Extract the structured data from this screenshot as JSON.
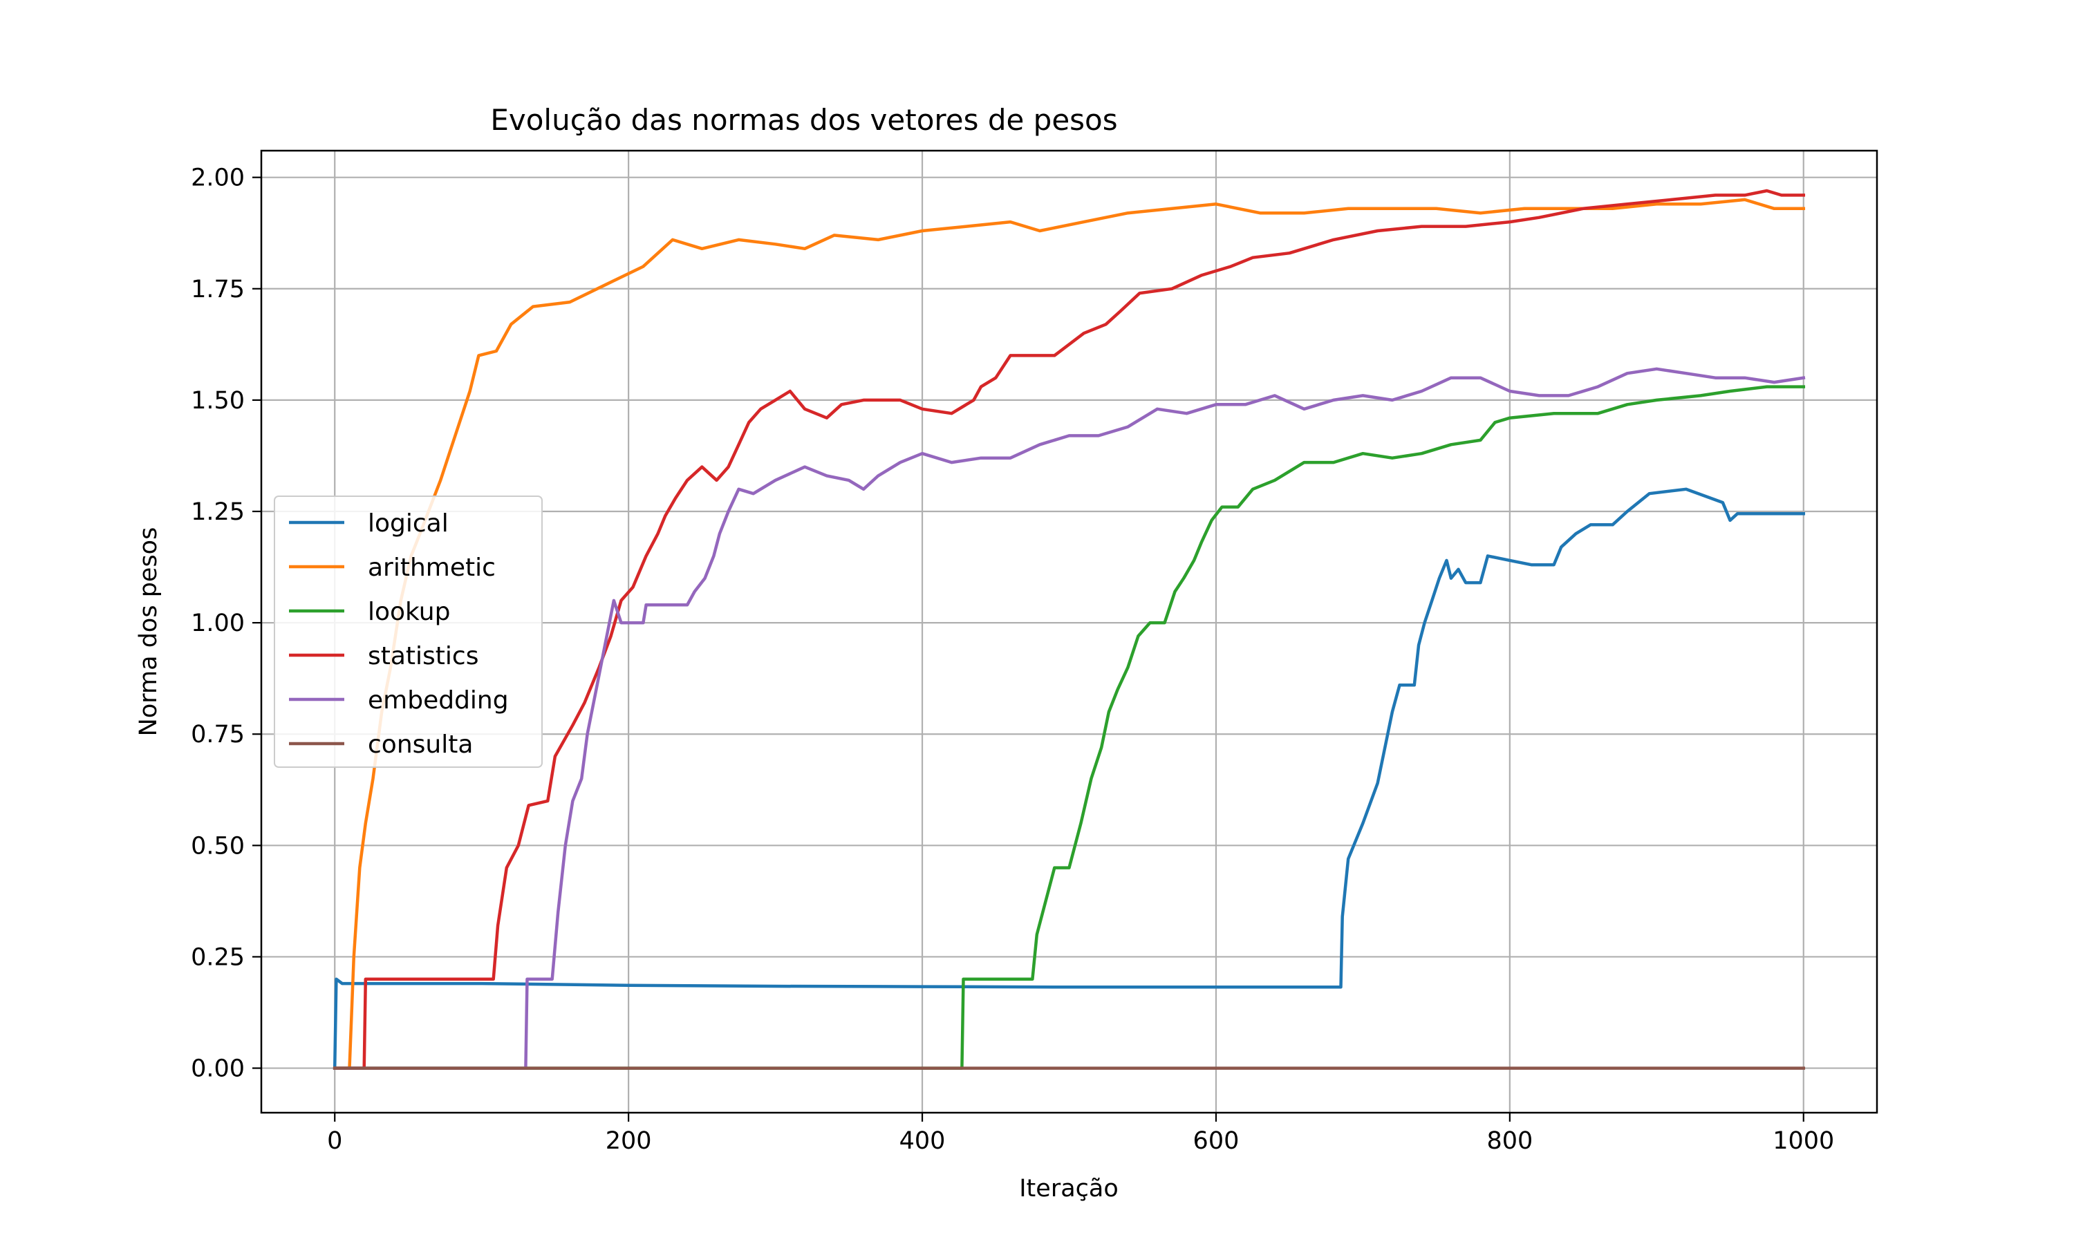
{
  "chart_data": {
    "type": "line",
    "title": "Evolução das normas dos vetores de pesos",
    "xlabel": "Iteração",
    "ylabel": "Norma dos pesos",
    "xlim": [
      -50,
      1050
    ],
    "ylim": [
      -0.1,
      2.06
    ],
    "xticks": [
      0,
      200,
      400,
      600,
      800,
      1000
    ],
    "xtick_labels": [
      "0",
      "200",
      "400",
      "600",
      "800",
      "1000"
    ],
    "yticks": [
      0,
      0.25,
      0.5,
      0.75,
      1.0,
      1.25,
      1.5,
      1.75,
      2.0
    ],
    "ytick_labels": [
      "0.00",
      "0.25",
      "0.50",
      "0.75",
      "1.00",
      "1.25",
      "1.50",
      "1.75",
      "2.00"
    ],
    "grid": true,
    "legend_position": "center-left",
    "series": [
      {
        "name": "logical",
        "color": "#1f77b4",
        "points": [
          [
            0,
            0
          ],
          [
            1,
            0.2
          ],
          [
            5,
            0.19
          ],
          [
            50,
            0.19
          ],
          [
            100,
            0.19
          ],
          [
            200,
            0.186
          ],
          [
            300,
            0.184
          ],
          [
            400,
            0.183
          ],
          [
            500,
            0.182
          ],
          [
            600,
            0.182
          ],
          [
            685,
            0.182
          ],
          [
            686,
            0.34
          ],
          [
            690,
            0.47
          ],
          [
            700,
            0.55
          ],
          [
            710,
            0.64
          ],
          [
            715,
            0.72
          ],
          [
            720,
            0.8
          ],
          [
            725,
            0.86
          ],
          [
            735,
            0.86
          ],
          [
            738,
            0.95
          ],
          [
            742,
            1.0
          ],
          [
            747,
            1.05
          ],
          [
            752,
            1.1
          ],
          [
            757,
            1.14
          ],
          [
            760,
            1.1
          ],
          [
            765,
            1.12
          ],
          [
            770,
            1.09
          ],
          [
            780,
            1.09
          ],
          [
            785,
            1.15
          ],
          [
            800,
            1.14
          ],
          [
            815,
            1.13
          ],
          [
            830,
            1.13
          ],
          [
            835,
            1.17
          ],
          [
            845,
            1.2
          ],
          [
            855,
            1.22
          ],
          [
            870,
            1.22
          ],
          [
            880,
            1.25
          ],
          [
            895,
            1.29
          ],
          [
            920,
            1.3
          ],
          [
            945,
            1.27
          ],
          [
            950,
            1.23
          ],
          [
            955,
            1.245
          ],
          [
            970,
            1.245
          ],
          [
            1000,
            1.245
          ]
        ]
      },
      {
        "name": "arithmetic",
        "color": "#ff7f0e",
        "points": [
          [
            0,
            0
          ],
          [
            10,
            0
          ],
          [
            13,
            0.25
          ],
          [
            17,
            0.45
          ],
          [
            21,
            0.55
          ],
          [
            26,
            0.65
          ],
          [
            32,
            0.8
          ],
          [
            38,
            0.9
          ],
          [
            45,
            1.05
          ],
          [
            52,
            1.15
          ],
          [
            58,
            1.2
          ],
          [
            65,
            1.26
          ],
          [
            72,
            1.32
          ],
          [
            78,
            1.38
          ],
          [
            85,
            1.45
          ],
          [
            92,
            1.52
          ],
          [
            98,
            1.6
          ],
          [
            110,
            1.61
          ],
          [
            120,
            1.67
          ],
          [
            135,
            1.71
          ],
          [
            160,
            1.72
          ],
          [
            185,
            1.76
          ],
          [
            210,
            1.8
          ],
          [
            230,
            1.86
          ],
          [
            250,
            1.84
          ],
          [
            275,
            1.86
          ],
          [
            300,
            1.85
          ],
          [
            320,
            1.84
          ],
          [
            340,
            1.87
          ],
          [
            370,
            1.86
          ],
          [
            400,
            1.88
          ],
          [
            430,
            1.89
          ],
          [
            460,
            1.9
          ],
          [
            480,
            1.88
          ],
          [
            510,
            1.9
          ],
          [
            540,
            1.92
          ],
          [
            570,
            1.93
          ],
          [
            600,
            1.94
          ],
          [
            630,
            1.92
          ],
          [
            660,
            1.92
          ],
          [
            690,
            1.93
          ],
          [
            720,
            1.93
          ],
          [
            750,
            1.93
          ],
          [
            780,
            1.92
          ],
          [
            810,
            1.93
          ],
          [
            840,
            1.93
          ],
          [
            870,
            1.93
          ],
          [
            900,
            1.94
          ],
          [
            930,
            1.94
          ],
          [
            960,
            1.95
          ],
          [
            980,
            1.93
          ],
          [
            1000,
            1.93
          ]
        ]
      },
      {
        "name": "lookup",
        "color": "#2ca02c",
        "points": [
          [
            0,
            0
          ],
          [
            427,
            0
          ],
          [
            428,
            0.2
          ],
          [
            475,
            0.2
          ],
          [
            478,
            0.3
          ],
          [
            490,
            0.45
          ],
          [
            500,
            0.45
          ],
          [
            508,
            0.55
          ],
          [
            515,
            0.65
          ],
          [
            522,
            0.72
          ],
          [
            527,
            0.8
          ],
          [
            533,
            0.85
          ],
          [
            540,
            0.9
          ],
          [
            547,
            0.97
          ],
          [
            555,
            1.0
          ],
          [
            565,
            1.0
          ],
          [
            572,
            1.07
          ],
          [
            578,
            1.1
          ],
          [
            585,
            1.14
          ],
          [
            590,
            1.18
          ],
          [
            597,
            1.23
          ],
          [
            604,
            1.26
          ],
          [
            615,
            1.26
          ],
          [
            625,
            1.3
          ],
          [
            640,
            1.32
          ],
          [
            660,
            1.36
          ],
          [
            680,
            1.36
          ],
          [
            700,
            1.38
          ],
          [
            720,
            1.37
          ],
          [
            740,
            1.38
          ],
          [
            760,
            1.4
          ],
          [
            780,
            1.41
          ],
          [
            790,
            1.45
          ],
          [
            800,
            1.46
          ],
          [
            830,
            1.47
          ],
          [
            860,
            1.47
          ],
          [
            880,
            1.49
          ],
          [
            900,
            1.5
          ],
          [
            930,
            1.51
          ],
          [
            950,
            1.52
          ],
          [
            975,
            1.53
          ],
          [
            1000,
            1.53
          ]
        ]
      },
      {
        "name": "statistics",
        "color": "#d62728",
        "points": [
          [
            0,
            0
          ],
          [
            20,
            0
          ],
          [
            21,
            0.2
          ],
          [
            60,
            0.2
          ],
          [
            108,
            0.2
          ],
          [
            111,
            0.32
          ],
          [
            117,
            0.45
          ],
          [
            125,
            0.5
          ],
          [
            132,
            0.59
          ],
          [
            145,
            0.6
          ],
          [
            150,
            0.7
          ],
          [
            162,
            0.77
          ],
          [
            170,
            0.82
          ],
          [
            180,
            0.9
          ],
          [
            188,
            0.97
          ],
          [
            195,
            1.05
          ],
          [
            203,
            1.08
          ],
          [
            212,
            1.15
          ],
          [
            220,
            1.2
          ],
          [
            225,
            1.24
          ],
          [
            232,
            1.28
          ],
          [
            240,
            1.32
          ],
          [
            250,
            1.35
          ],
          [
            260,
            1.32
          ],
          [
            268,
            1.35
          ],
          [
            275,
            1.4
          ],
          [
            282,
            1.45
          ],
          [
            290,
            1.48
          ],
          [
            300,
            1.5
          ],
          [
            310,
            1.52
          ],
          [
            320,
            1.48
          ],
          [
            335,
            1.46
          ],
          [
            345,
            1.49
          ],
          [
            360,
            1.5
          ],
          [
            385,
            1.5
          ],
          [
            400,
            1.48
          ],
          [
            420,
            1.47
          ],
          [
            435,
            1.5
          ],
          [
            440,
            1.53
          ],
          [
            450,
            1.55
          ],
          [
            460,
            1.6
          ],
          [
            490,
            1.6
          ],
          [
            510,
            1.65
          ],
          [
            525,
            1.67
          ],
          [
            535,
            1.7
          ],
          [
            548,
            1.74
          ],
          [
            570,
            1.75
          ],
          [
            590,
            1.78
          ],
          [
            610,
            1.8
          ],
          [
            625,
            1.82
          ],
          [
            650,
            1.83
          ],
          [
            680,
            1.86
          ],
          [
            710,
            1.88
          ],
          [
            740,
            1.89
          ],
          [
            770,
            1.89
          ],
          [
            800,
            1.9
          ],
          [
            820,
            1.91
          ],
          [
            850,
            1.93
          ],
          [
            880,
            1.94
          ],
          [
            910,
            1.95
          ],
          [
            940,
            1.96
          ],
          [
            960,
            1.96
          ],
          [
            975,
            1.97
          ],
          [
            985,
            1.96
          ],
          [
            1000,
            1.96
          ]
        ]
      },
      {
        "name": "embedding",
        "color": "#9467bd",
        "points": [
          [
            0,
            0
          ],
          [
            130,
            0
          ],
          [
            131,
            0.2
          ],
          [
            148,
            0.2
          ],
          [
            152,
            0.35
          ],
          [
            157,
            0.5
          ],
          [
            162,
            0.6
          ],
          [
            168,
            0.65
          ],
          [
            172,
            0.75
          ],
          [
            178,
            0.85
          ],
          [
            184,
            0.95
          ],
          [
            190,
            1.05
          ],
          [
            195,
            1.0
          ],
          [
            210,
            1.0
          ],
          [
            212,
            1.04
          ],
          [
            240,
            1.04
          ],
          [
            245,
            1.07
          ],
          [
            252,
            1.1
          ],
          [
            258,
            1.15
          ],
          [
            262,
            1.2
          ],
          [
            268,
            1.25
          ],
          [
            275,
            1.3
          ],
          [
            285,
            1.29
          ],
          [
            300,
            1.32
          ],
          [
            320,
            1.35
          ],
          [
            335,
            1.33
          ],
          [
            350,
            1.32
          ],
          [
            360,
            1.3
          ],
          [
            370,
            1.33
          ],
          [
            385,
            1.36
          ],
          [
            400,
            1.38
          ],
          [
            420,
            1.36
          ],
          [
            440,
            1.37
          ],
          [
            460,
            1.37
          ],
          [
            480,
            1.4
          ],
          [
            500,
            1.42
          ],
          [
            520,
            1.42
          ],
          [
            540,
            1.44
          ],
          [
            560,
            1.48
          ],
          [
            580,
            1.47
          ],
          [
            600,
            1.49
          ],
          [
            620,
            1.49
          ],
          [
            640,
            1.51
          ],
          [
            660,
            1.48
          ],
          [
            680,
            1.5
          ],
          [
            700,
            1.51
          ],
          [
            720,
            1.5
          ],
          [
            740,
            1.52
          ],
          [
            760,
            1.55
          ],
          [
            780,
            1.55
          ],
          [
            800,
            1.52
          ],
          [
            820,
            1.51
          ],
          [
            840,
            1.51
          ],
          [
            860,
            1.53
          ],
          [
            880,
            1.56
          ],
          [
            900,
            1.57
          ],
          [
            920,
            1.56
          ],
          [
            940,
            1.55
          ],
          [
            960,
            1.55
          ],
          [
            980,
            1.54
          ],
          [
            1000,
            1.55
          ]
        ]
      },
      {
        "name": "consulta",
        "color": "#8c564b",
        "points": [
          [
            0,
            0
          ],
          [
            1000,
            0
          ]
        ]
      }
    ]
  }
}
